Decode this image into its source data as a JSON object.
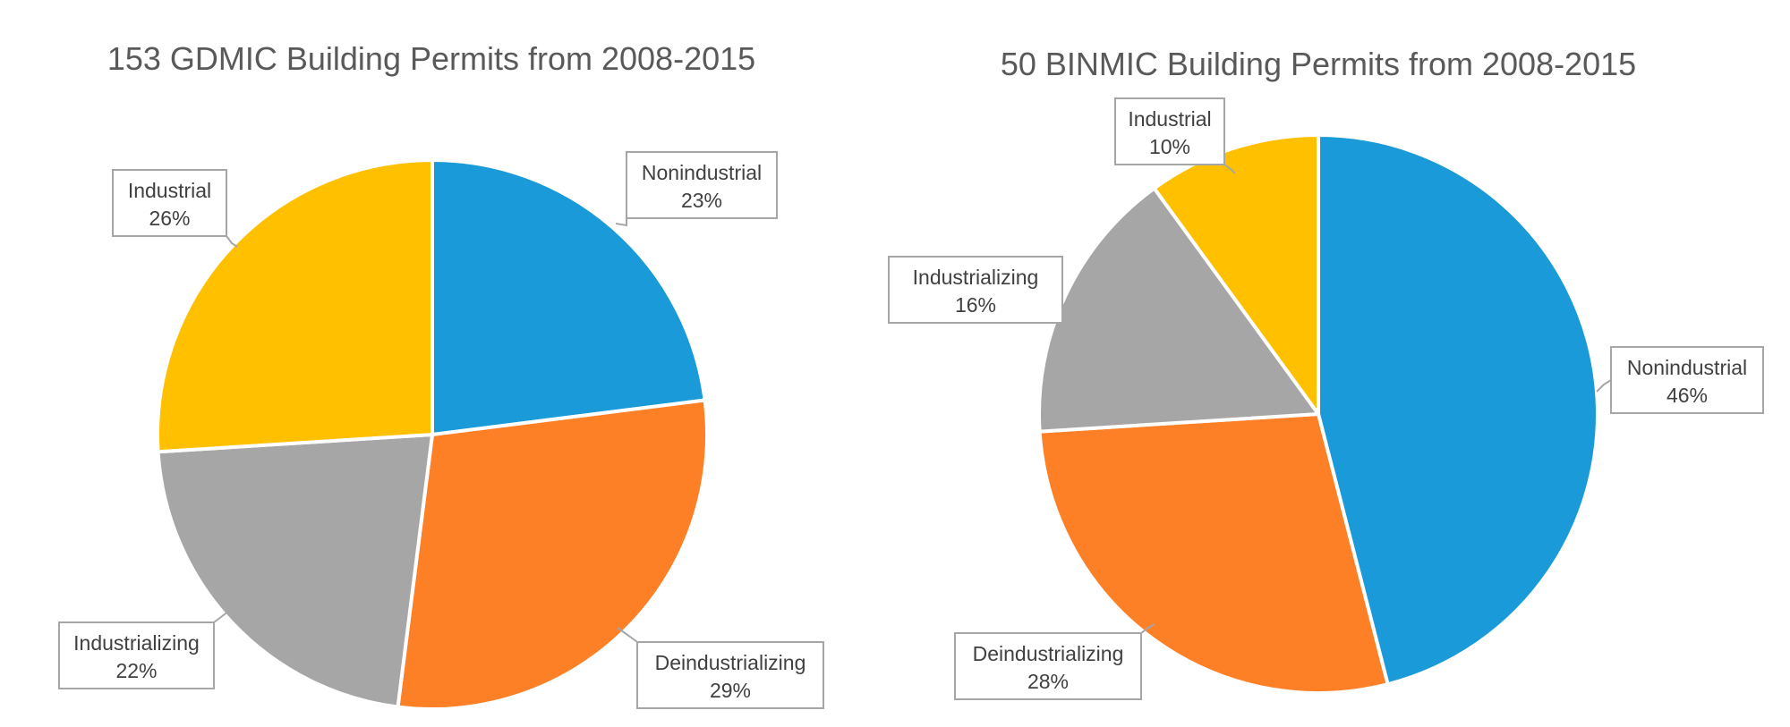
{
  "chart_data": [
    {
      "type": "pie",
      "title": "153 GDMIC Building Permits from 2008-2015",
      "series": [
        {
          "name": "Nonindustrial",
          "percent_label": "23%",
          "value": 23,
          "color": "#1a9ad9"
        },
        {
          "name": "Deindustrializing",
          "percent_label": "29%",
          "value": 29,
          "color": "#fd7f26"
        },
        {
          "name": "Industrializing",
          "percent_label": "22%",
          "value": 22,
          "color": "#a6a6a6"
        },
        {
          "name": "Industrial",
          "percent_label": "26%",
          "value": 26,
          "color": "#ffc000"
        }
      ]
    },
    {
      "type": "pie",
      "title": "50 BINMIC Building Permits from 2008-2015",
      "series": [
        {
          "name": "Nonindustrial",
          "percent_label": "46%",
          "value": 46,
          "color": "#1a9ad9"
        },
        {
          "name": "Deindustrializing",
          "percent_label": "28%",
          "value": 28,
          "color": "#fd7f26"
        },
        {
          "name": "Industrializing",
          "percent_label": "16%",
          "value": 16,
          "color": "#a6a6a6"
        },
        {
          "name": "Industrial",
          "percent_label": "10%",
          "value": 10,
          "color": "#ffc000"
        }
      ]
    }
  ]
}
